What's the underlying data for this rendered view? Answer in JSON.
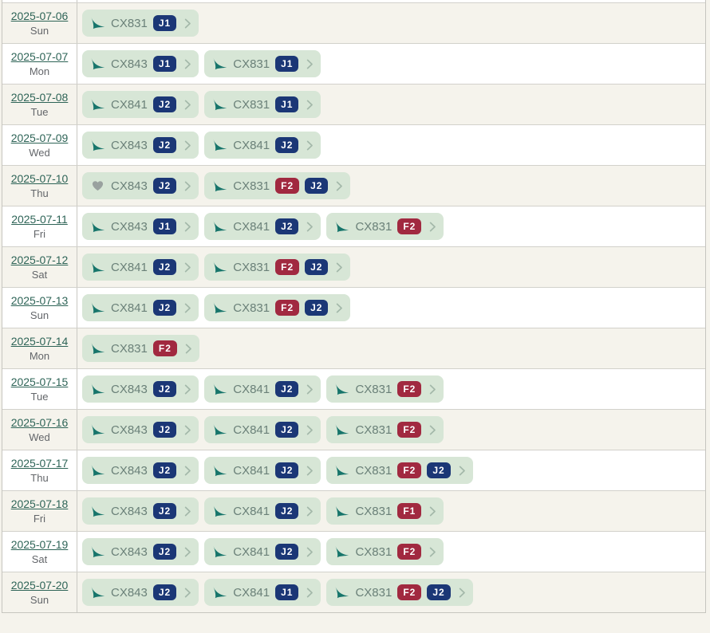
{
  "colors": {
    "page_background": "#f5f3ec",
    "row_alt_background": "#f5f3ec",
    "row_background": "#ffffff",
    "chip_background": "#d7e6d6",
    "chip_text": "#6a8078",
    "badge_business": "#1b3776",
    "badge_first": "#a12940",
    "badge_text": "#ffffff",
    "airline_logo_color": "#17756b",
    "heart_color": "#99a19f",
    "date_link_color": "#2e6457",
    "day_text_color": "#63666a",
    "chevron_color": "#a3b8a9",
    "border_color": "#d2d1cb"
  },
  "icons": {
    "airline": "airline-logo-icon",
    "heart": "heart-icon",
    "chevron": "chevron-right-icon"
  },
  "calendar": {
    "rows": [
      {
        "date": "2025-07-06",
        "day": "Sun",
        "flights": [
          {
            "icon": "airline",
            "flight": "CX831",
            "badges": [
              {
                "label": "J1",
                "class": "business"
              }
            ]
          }
        ]
      },
      {
        "date": "2025-07-07",
        "day": "Mon",
        "flights": [
          {
            "icon": "airline",
            "flight": "CX843",
            "badges": [
              {
                "label": "J1",
                "class": "business"
              }
            ]
          },
          {
            "icon": "airline",
            "flight": "CX831",
            "badges": [
              {
                "label": "J1",
                "class": "business"
              }
            ]
          }
        ]
      },
      {
        "date": "2025-07-08",
        "day": "Tue",
        "flights": [
          {
            "icon": "airline",
            "flight": "CX841",
            "badges": [
              {
                "label": "J2",
                "class": "business"
              }
            ]
          },
          {
            "icon": "airline",
            "flight": "CX831",
            "badges": [
              {
                "label": "J1",
                "class": "business"
              }
            ]
          }
        ]
      },
      {
        "date": "2025-07-09",
        "day": "Wed",
        "flights": [
          {
            "icon": "airline",
            "flight": "CX843",
            "badges": [
              {
                "label": "J2",
                "class": "business"
              }
            ]
          },
          {
            "icon": "airline",
            "flight": "CX841",
            "badges": [
              {
                "label": "J2",
                "class": "business"
              }
            ]
          }
        ]
      },
      {
        "date": "2025-07-10",
        "day": "Thu",
        "flights": [
          {
            "icon": "heart",
            "flight": "CX843",
            "badges": [
              {
                "label": "J2",
                "class": "business"
              }
            ]
          },
          {
            "icon": "airline",
            "flight": "CX831",
            "badges": [
              {
                "label": "F2",
                "class": "first"
              },
              {
                "label": "J2",
                "class": "business"
              }
            ]
          }
        ]
      },
      {
        "date": "2025-07-11",
        "day": "Fri",
        "flights": [
          {
            "icon": "airline",
            "flight": "CX843",
            "badges": [
              {
                "label": "J1",
                "class": "business"
              }
            ]
          },
          {
            "icon": "airline",
            "flight": "CX841",
            "badges": [
              {
                "label": "J2",
                "class": "business"
              }
            ]
          },
          {
            "icon": "airline",
            "flight": "CX831",
            "badges": [
              {
                "label": "F2",
                "class": "first"
              }
            ]
          }
        ]
      },
      {
        "date": "2025-07-12",
        "day": "Sat",
        "flights": [
          {
            "icon": "airline",
            "flight": "CX841",
            "badges": [
              {
                "label": "J2",
                "class": "business"
              }
            ]
          },
          {
            "icon": "airline",
            "flight": "CX831",
            "badges": [
              {
                "label": "F2",
                "class": "first"
              },
              {
                "label": "J2",
                "class": "business"
              }
            ]
          }
        ]
      },
      {
        "date": "2025-07-13",
        "day": "Sun",
        "flights": [
          {
            "icon": "airline",
            "flight": "CX841",
            "badges": [
              {
                "label": "J2",
                "class": "business"
              }
            ]
          },
          {
            "icon": "airline",
            "flight": "CX831",
            "badges": [
              {
                "label": "F2",
                "class": "first"
              },
              {
                "label": "J2",
                "class": "business"
              }
            ]
          }
        ]
      },
      {
        "date": "2025-07-14",
        "day": "Mon",
        "flights": [
          {
            "icon": "airline",
            "flight": "CX831",
            "badges": [
              {
                "label": "F2",
                "class": "first"
              }
            ]
          }
        ]
      },
      {
        "date": "2025-07-15",
        "day": "Tue",
        "flights": [
          {
            "icon": "airline",
            "flight": "CX843",
            "badges": [
              {
                "label": "J2",
                "class": "business"
              }
            ]
          },
          {
            "icon": "airline",
            "flight": "CX841",
            "badges": [
              {
                "label": "J2",
                "class": "business"
              }
            ]
          },
          {
            "icon": "airline",
            "flight": "CX831",
            "badges": [
              {
                "label": "F2",
                "class": "first"
              }
            ]
          }
        ]
      },
      {
        "date": "2025-07-16",
        "day": "Wed",
        "flights": [
          {
            "icon": "airline",
            "flight": "CX843",
            "badges": [
              {
                "label": "J2",
                "class": "business"
              }
            ]
          },
          {
            "icon": "airline",
            "flight": "CX841",
            "badges": [
              {
                "label": "J2",
                "class": "business"
              }
            ]
          },
          {
            "icon": "airline",
            "flight": "CX831",
            "badges": [
              {
                "label": "F2",
                "class": "first"
              }
            ]
          }
        ]
      },
      {
        "date": "2025-07-17",
        "day": "Thu",
        "flights": [
          {
            "icon": "airline",
            "flight": "CX843",
            "badges": [
              {
                "label": "J2",
                "class": "business"
              }
            ]
          },
          {
            "icon": "airline",
            "flight": "CX841",
            "badges": [
              {
                "label": "J2",
                "class": "business"
              }
            ]
          },
          {
            "icon": "airline",
            "flight": "CX831",
            "badges": [
              {
                "label": "F2",
                "class": "first"
              },
              {
                "label": "J2",
                "class": "business"
              }
            ]
          }
        ]
      },
      {
        "date": "2025-07-18",
        "day": "Fri",
        "flights": [
          {
            "icon": "airline",
            "flight": "CX843",
            "badges": [
              {
                "label": "J2",
                "class": "business"
              }
            ]
          },
          {
            "icon": "airline",
            "flight": "CX841",
            "badges": [
              {
                "label": "J2",
                "class": "business"
              }
            ]
          },
          {
            "icon": "airline",
            "flight": "CX831",
            "badges": [
              {
                "label": "F1",
                "class": "first"
              }
            ]
          }
        ]
      },
      {
        "date": "2025-07-19",
        "day": "Sat",
        "flights": [
          {
            "icon": "airline",
            "flight": "CX843",
            "badges": [
              {
                "label": "J2",
                "class": "business"
              }
            ]
          },
          {
            "icon": "airline",
            "flight": "CX841",
            "badges": [
              {
                "label": "J2",
                "class": "business"
              }
            ]
          },
          {
            "icon": "airline",
            "flight": "CX831",
            "badges": [
              {
                "label": "F2",
                "class": "first"
              }
            ]
          }
        ]
      },
      {
        "date": "2025-07-20",
        "day": "Sun",
        "flights": [
          {
            "icon": "airline",
            "flight": "CX843",
            "badges": [
              {
                "label": "J2",
                "class": "business"
              }
            ]
          },
          {
            "icon": "airline",
            "flight": "CX841",
            "badges": [
              {
                "label": "J1",
                "class": "business"
              }
            ]
          },
          {
            "icon": "airline",
            "flight": "CX831",
            "badges": [
              {
                "label": "F2",
                "class": "first"
              },
              {
                "label": "J2",
                "class": "business"
              }
            ]
          }
        ]
      }
    ]
  }
}
